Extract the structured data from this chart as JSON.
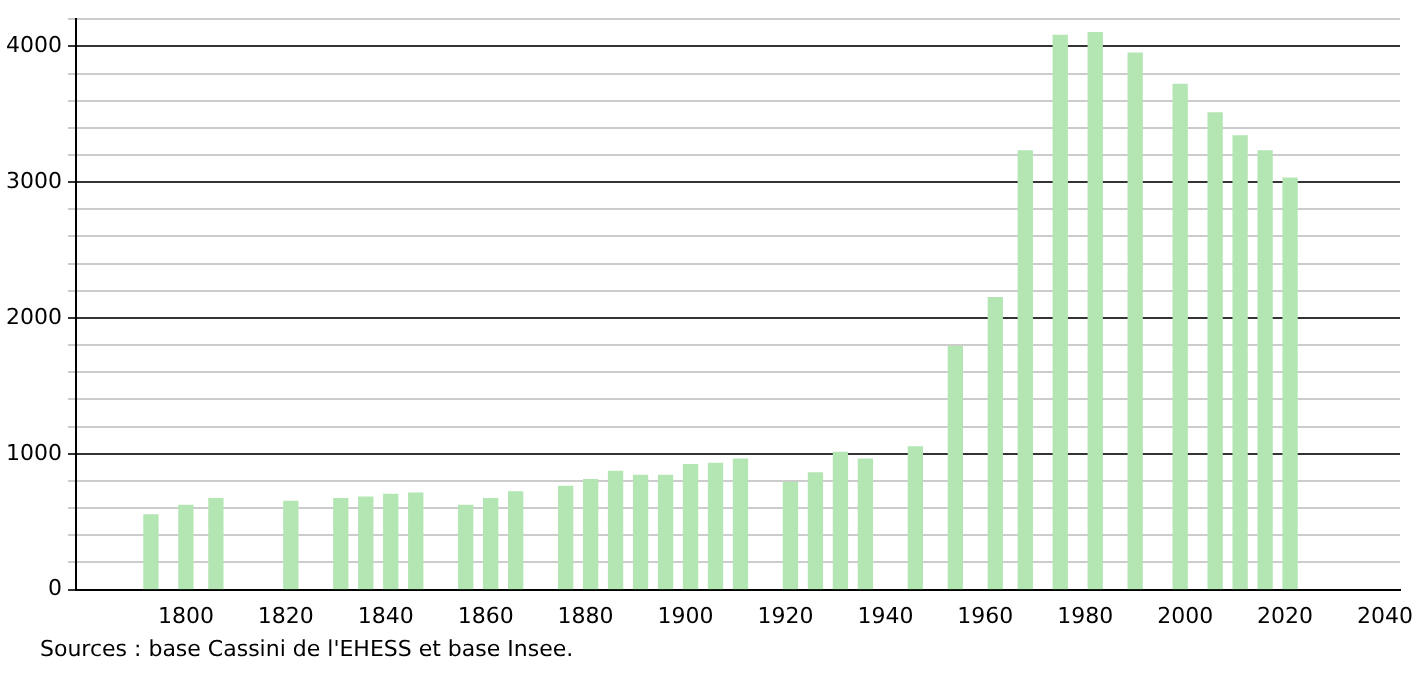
{
  "chart_data": {
    "type": "bar",
    "x": [
      1793,
      1800,
      1806,
      1821,
      1831,
      1836,
      1841,
      1846,
      1856,
      1861,
      1866,
      1876,
      1881,
      1886,
      1891,
      1896,
      1901,
      1906,
      1911,
      1921,
      1926,
      1931,
      1936,
      1946,
      1954,
      1962,
      1968,
      1975,
      1982,
      1990,
      1999,
      2006,
      2011,
      2016,
      2021
    ],
    "values": [
      550,
      620,
      670,
      650,
      670,
      680,
      700,
      710,
      620,
      670,
      720,
      760,
      810,
      870,
      840,
      840,
      920,
      930,
      960,
      790,
      860,
      1010,
      960,
      1050,
      1790,
      2150,
      3230,
      4080,
      4100,
      3950,
      3720,
      3510,
      3340,
      3230,
      3030
    ],
    "color": "#b3e6b3",
    "xlim": [
      1778,
      2043
    ],
    "xticks": [
      1800,
      1820,
      1840,
      1860,
      1880,
      1900,
      1920,
      1940,
      1960,
      1980,
      2000,
      2020,
      2040
    ],
    "ylim": [
      0,
      4200
    ],
    "yticks": [
      0,
      {
        "value": 200,
        "label": null
      },
      {
        "value": 400,
        "label": null
      },
      {
        "value": 600,
        "label": null
      },
      {
        "value": 800,
        "label": null
      },
      1000,
      {
        "value": 1200,
        "label": null
      },
      {
        "value": 1400,
        "label": null
      },
      {
        "value": 1600,
        "label": null
      },
      {
        "value": 1800,
        "label": null
      },
      2000,
      {
        "value": 2200,
        "label": null
      },
      {
        "value": 2400,
        "label": null
      },
      {
        "value": 2600,
        "label": null
      },
      {
        "value": 2800,
        "label": null
      },
      3000,
      {
        "value": 3200,
        "label": null
      },
      {
        "value": 3400,
        "label": null
      },
      {
        "value": 3600,
        "label": null
      },
      {
        "value": 3800,
        "label": null
      },
      4000,
      {
        "value": 4200,
        "label": null
      }
    ],
    "grid": "y",
    "legend": false,
    "annotations": [
      "Sources : base Cassini de l'EHESS et base Insee."
    ]
  }
}
